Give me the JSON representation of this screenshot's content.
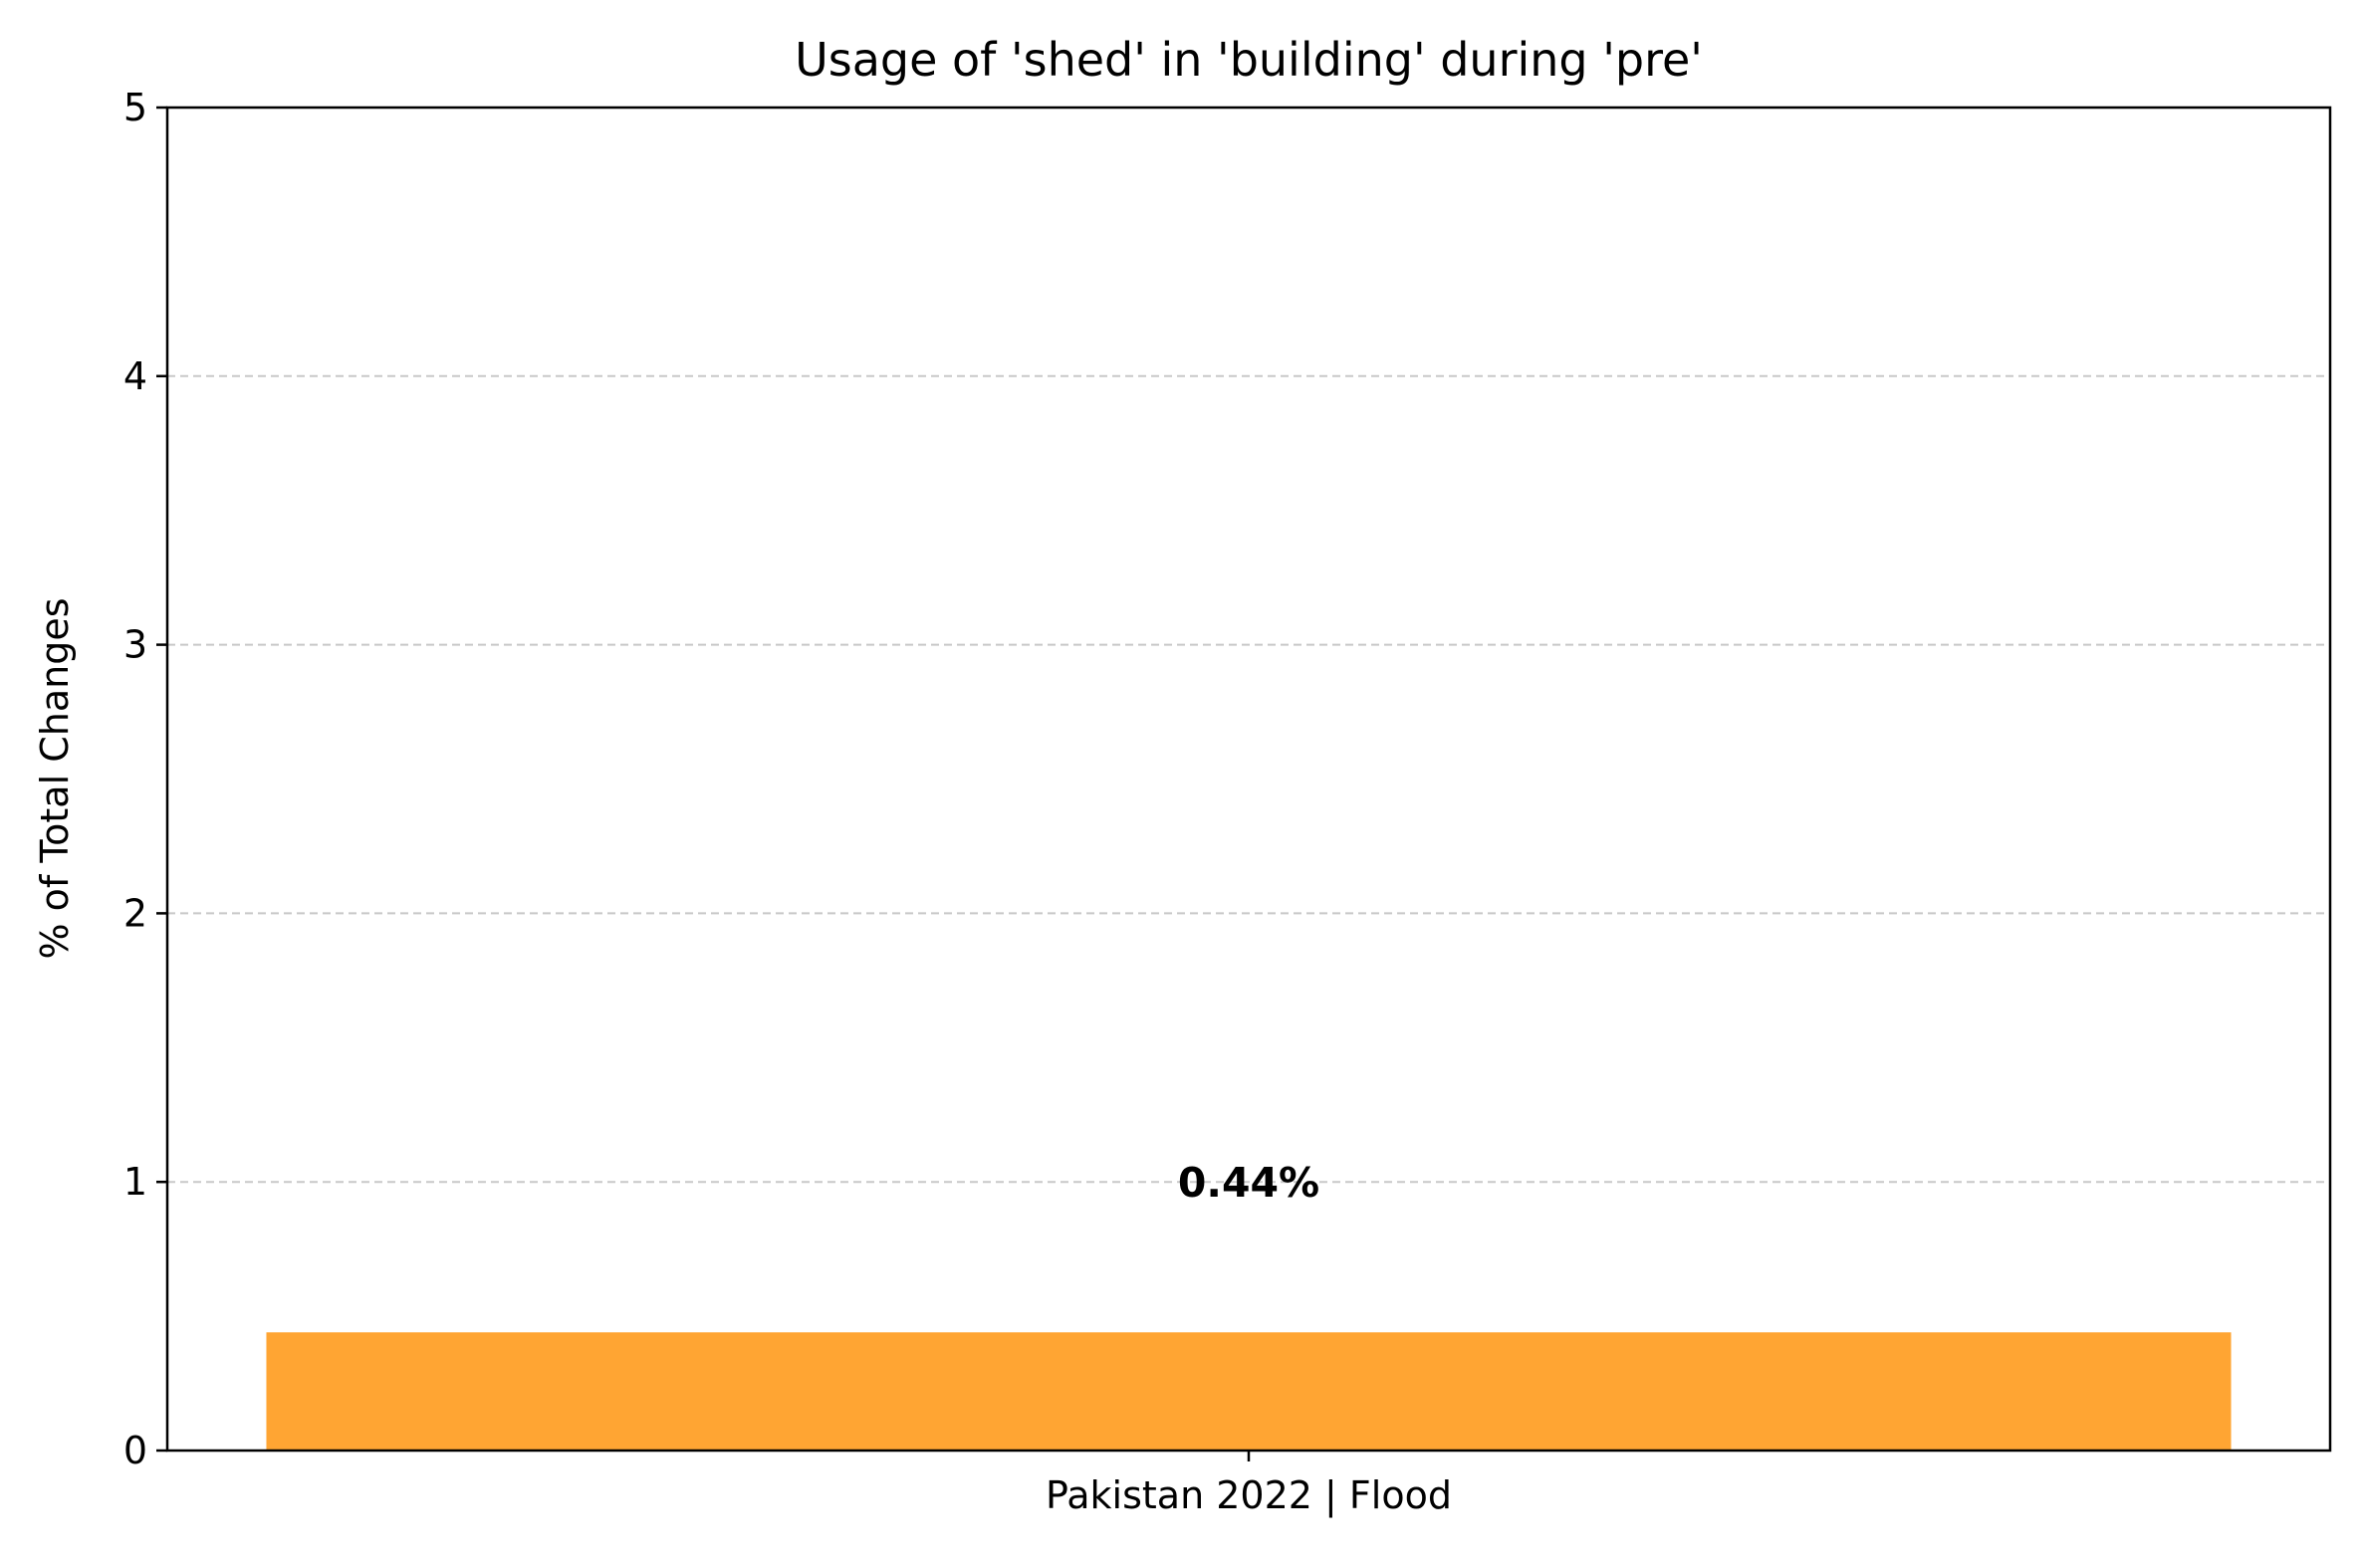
{
  "chart_data": {
    "type": "bar",
    "title": "Usage of 'shed' in 'building' during 'pre'",
    "xlabel": "",
    "ylabel": "% of Total Changes",
    "categories": [
      "Pakistan 2022 | Flood"
    ],
    "values": [
      0.44
    ],
    "value_labels": [
      "0.44%"
    ],
    "ylim": [
      0,
      5
    ],
    "yticks": [
      "0",
      "1",
      "2",
      "3",
      "4",
      "5"
    ],
    "grid": "y-dashed",
    "bar_color": "#ffa533",
    "grid_color": "#c8c8c8"
  }
}
